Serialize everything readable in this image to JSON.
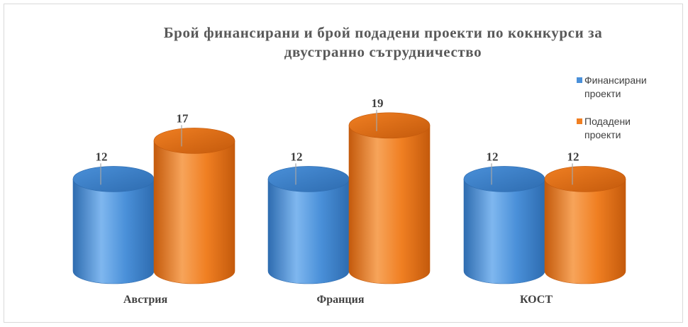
{
  "chart_data": {
    "type": "bar",
    "style": "3d-cylinder",
    "title_lines": [
      "Брой финансирани и брой подадени проекти по кокнкурси за",
      "двустранно сътрудничество"
    ],
    "categories": [
      "Австрия",
      "Франция",
      "КОСТ"
    ],
    "series": [
      {
        "name": "Финансирани проекти",
        "legend_lines": [
          "Финансирани",
          "проекти"
        ],
        "values": [
          12,
          12,
          12
        ],
        "color": "#4a90d9",
        "color_dark": "#2e6cb0",
        "color_light": "#7fb7ef"
      },
      {
        "name": "Подадени проекти",
        "legend_lines": [
          "Подадени",
          "проекти"
        ],
        "values": [
          17,
          19,
          12
        ],
        "color": "#f07f22",
        "color_dark": "#c45a0c",
        "color_light": "#f7a45a"
      }
    ],
    "ylim": [
      0,
      20
    ],
    "data_labels": true,
    "legend_position": "right",
    "grid": false
  }
}
